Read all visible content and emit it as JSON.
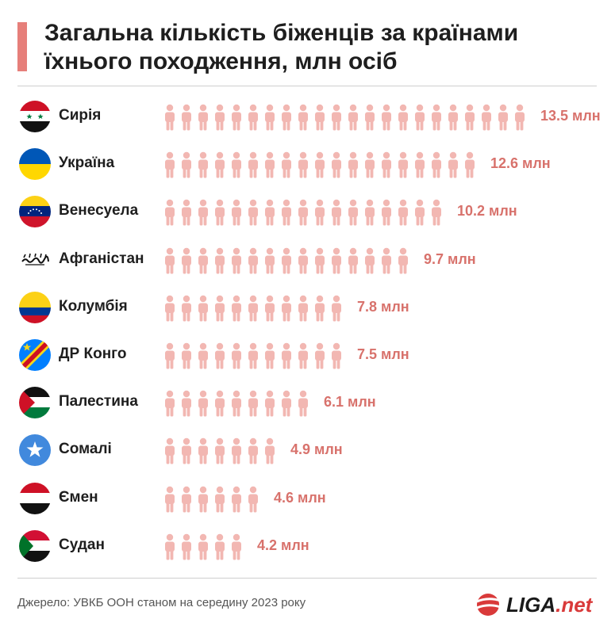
{
  "title": "Загальна кількість біженців за країнами їхнього походження, млн осіб",
  "source": "Джерело: УВКБ ООН станом на середину 2023 року",
  "logo": {
    "main": "LIGA",
    "suffix": ".net"
  },
  "colors": {
    "accent": "#e67f7a",
    "icon": "#f2b7b2",
    "value_text": "#d8726c"
  },
  "chart_data": {
    "type": "bar",
    "title": "Загальна кількість біженців за країнами їхнього походження, млн осіб",
    "unit": "млн",
    "categories": [
      "Сирія",
      "Україна",
      "Венесуела",
      "Афганістан",
      "Колумбія",
      "ДР Конго",
      "Палестина",
      "Сомалі",
      "Ємен",
      "Судан"
    ],
    "values": [
      13.5,
      12.6,
      10.2,
      9.7,
      7.8,
      7.5,
      6.1,
      4.9,
      4.6,
      4.2
    ],
    "labels": [
      "13.5 млн",
      "12.6 млн",
      "10.2 млн",
      "9.7 млн",
      "7.8 млн",
      "7.5 млн",
      "6.1 млн",
      "4.9 млн",
      "4.6 млн",
      "4.2 млн"
    ],
    "icon_counts": [
      22,
      19,
      17,
      15,
      11,
      11,
      9,
      7,
      6,
      5
    ],
    "flags": [
      "syria-flag-icon",
      "ukraine-flag-icon",
      "venezuela-flag-icon",
      "afghanistan-flag-icon",
      "colombia-flag-icon",
      "drc-flag-icon",
      "palestine-flag-icon",
      "somalia-flag-icon",
      "yemen-flag-icon",
      "sudan-flag-icon"
    ]
  }
}
